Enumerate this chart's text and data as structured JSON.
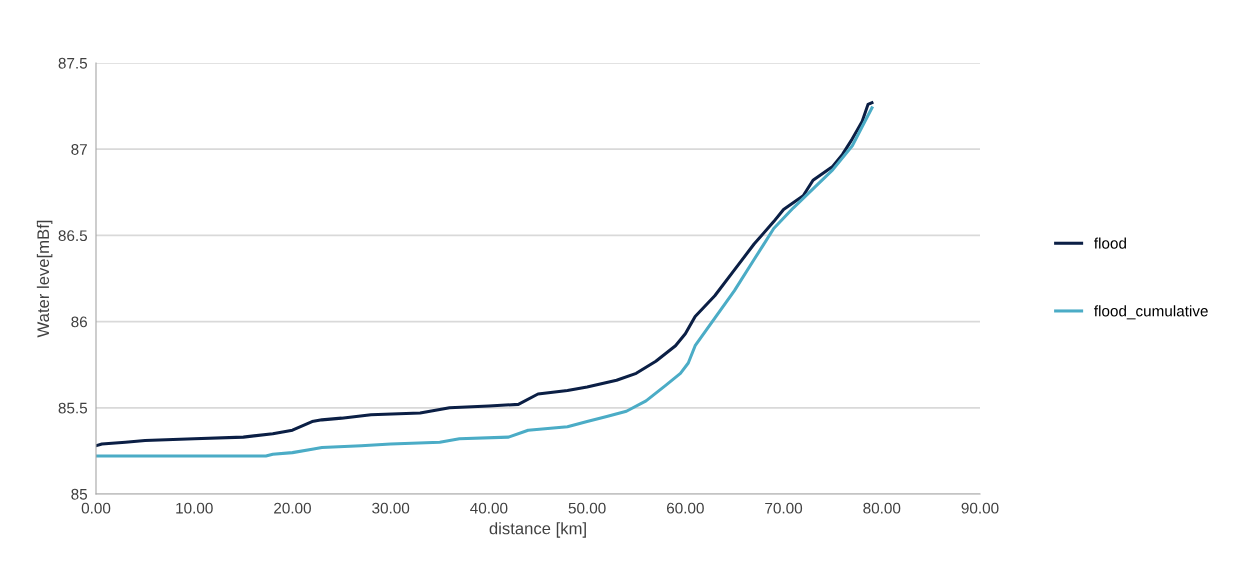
{
  "chart_data": {
    "type": "line",
    "xlabel": "distance [km]",
    "ylabel": "Water leve[mBf]",
    "xlim": [
      0,
      90
    ],
    "xticks": [
      {
        "value": 0,
        "label": "0.00"
      },
      {
        "value": 10,
        "label": "10.00"
      },
      {
        "value": 20,
        "label": "20.00"
      },
      {
        "value": 30,
        "label": "30.00"
      },
      {
        "value": 40,
        "label": "40.00"
      },
      {
        "value": 50,
        "label": "50.00"
      },
      {
        "value": 60,
        "label": "60.00"
      },
      {
        "value": 70,
        "label": "70.00"
      },
      {
        "value": 80,
        "label": "80.00"
      },
      {
        "value": 90,
        "label": "90.00"
      }
    ],
    "ylim": [
      85,
      87.5
    ],
    "yticks": [
      85,
      85.5,
      86,
      86.5,
      87,
      87.5
    ],
    "grid": "y",
    "legend": "right",
    "marker": "none",
    "line_style": "solid",
    "series": [
      {
        "name": "flood",
        "color": "#0b1f45",
        "x": [
          0,
          0.6,
          3,
          5,
          10,
          15,
          18,
          20,
          22,
          23,
          25,
          28,
          33,
          36,
          40,
          43,
          45,
          48,
          50,
          53,
          55,
          57,
          59,
          60,
          61,
          63,
          65,
          67,
          69,
          70,
          72,
          73,
          75,
          76,
          77,
          78,
          78.6,
          79
        ],
        "values": [
          85.28,
          85.29,
          85.3,
          85.31,
          85.32,
          85.33,
          85.35,
          85.37,
          85.42,
          85.43,
          85.44,
          85.46,
          85.47,
          85.5,
          85.51,
          85.52,
          85.58,
          85.6,
          85.62,
          85.66,
          85.7,
          85.77,
          85.86,
          85.93,
          86.03,
          86.15,
          86.3,
          86.45,
          86.58,
          86.65,
          86.73,
          86.82,
          86.9,
          86.97,
          87.06,
          87.16,
          87.26,
          87.27
        ]
      },
      {
        "name": "flood_cumulative",
        "color": "#4bacc6",
        "x": [
          0,
          17.3,
          18,
          20,
          22,
          23,
          27,
          30,
          35,
          37,
          42,
          44,
          46,
          48,
          50,
          52,
          54,
          56,
          58,
          59.5,
          60.3,
          61,
          62,
          63,
          65,
          67,
          69,
          71,
          73,
          75,
          77,
          78,
          79
        ],
        "values": [
          85.22,
          85.22,
          85.23,
          85.24,
          85.26,
          85.27,
          85.28,
          85.29,
          85.3,
          85.32,
          85.33,
          85.37,
          85.38,
          85.39,
          85.42,
          85.45,
          85.48,
          85.54,
          85.63,
          85.7,
          85.76,
          85.86,
          85.94,
          86.02,
          86.18,
          86.36,
          86.54,
          86.66,
          86.77,
          86.88,
          87.02,
          87.13,
          87.24
        ]
      }
    ]
  }
}
